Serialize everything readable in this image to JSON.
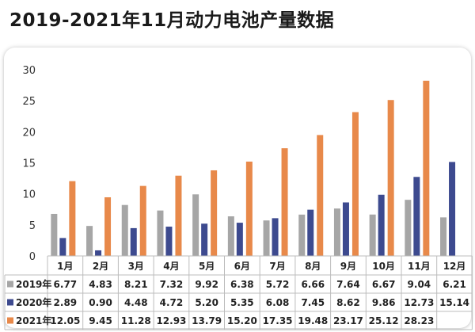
{
  "title": "2019-2021年11月动力电池产量数据",
  "chart_data": {
    "type": "bar",
    "title": "2019-2021年11月动力电池产量数据",
    "categories": [
      "1月",
      "2月",
      "3月",
      "4月",
      "5月",
      "6月",
      "7月",
      "8月",
      "9月",
      "10月",
      "11月",
      "12月"
    ],
    "ylim": [
      0,
      30
    ],
    "yticks": [
      0,
      5,
      10,
      15,
      20,
      25,
      30
    ],
    "ytick_labels": [
      "0",
      "5",
      "10",
      "15",
      "20",
      "25",
      "30"
    ],
    "grid": false,
    "legend": "table-left",
    "series": [
      {
        "name": "2019年",
        "color": "#a6a6a6",
        "values": [
          6.77,
          4.83,
          8.21,
          7.32,
          9.92,
          6.38,
          5.72,
          6.66,
          7.64,
          6.67,
          9.04,
          6.21
        ],
        "labels": [
          "6.77",
          "4.83",
          "8.21",
          "7.32",
          "9.92",
          "6.38",
          "5.72",
          "6.66",
          "7.64",
          "6.67",
          "9.04",
          "6.21"
        ]
      },
      {
        "name": "2020年",
        "color": "#3d4a8f",
        "values": [
          2.89,
          0.9,
          4.48,
          4.72,
          5.2,
          5.35,
          6.08,
          7.45,
          8.62,
          9.86,
          12.73,
          15.14
        ],
        "labels": [
          "2.89",
          "0.90",
          "4.48",
          "4.72",
          "5.20",
          "5.35",
          "6.08",
          "7.45",
          "8.62",
          "9.86",
          "12.73",
          "15.14"
        ]
      },
      {
        "name": "2021年",
        "color": "#e8894a",
        "values": [
          12.05,
          9.45,
          11.28,
          12.93,
          13.79,
          15.2,
          17.35,
          19.48,
          23.17,
          25.12,
          28.23,
          null
        ],
        "labels": [
          "12.05",
          "9.45",
          "11.28",
          "12.93",
          "13.79",
          "15.20",
          "17.35",
          "19.48",
          "23.17",
          "25.12",
          "28.23",
          ""
        ]
      }
    ]
  }
}
